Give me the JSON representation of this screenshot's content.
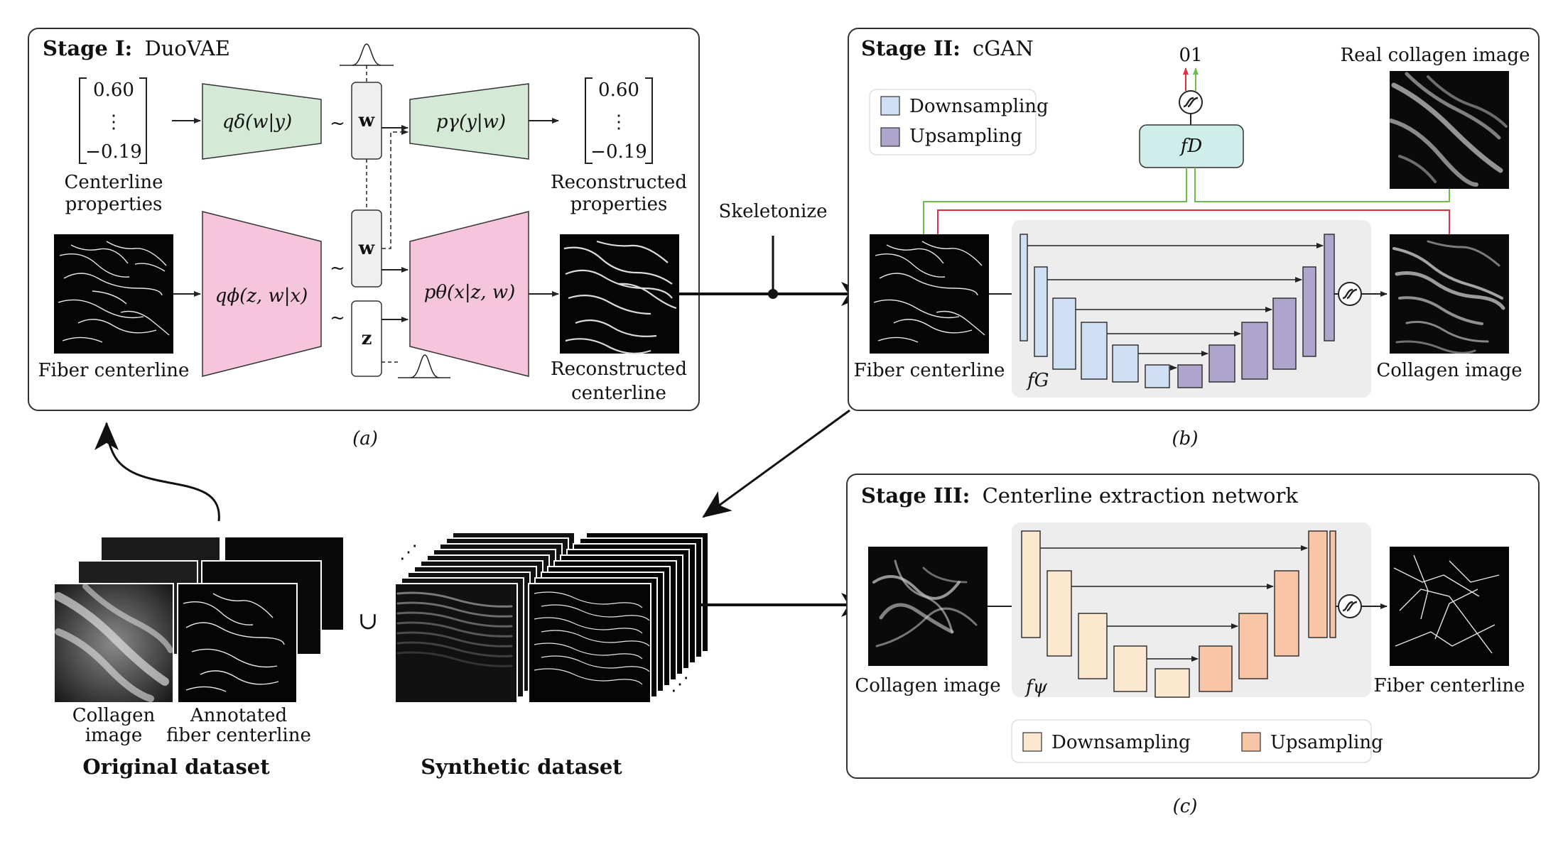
{
  "stage1": {
    "title_bold": "Stage I:",
    "title_rest": "DuoVAE",
    "vector_in": [
      "0.60",
      "⋮",
      "−0.19"
    ],
    "vector_out": [
      "0.60",
      "⋮",
      "−0.19"
    ],
    "encoder_y": "qδ(w|y)",
    "decoder_y": "pγ(y|w)",
    "encoder_x": "qϕ(z, w|x)",
    "decoder_x": "pθ(x|z, w)",
    "latent_w": "w",
    "latent_z": "z",
    "tilde": "~",
    "centerline_props": [
      "Centerline",
      "properties"
    ],
    "recon_props": [
      "Reconstructed",
      "properties"
    ],
    "fiber_centerline": "Fiber centerline",
    "recon_centerline": [
      "Reconstructed",
      "centerline"
    ],
    "panel_label": "(a)"
  },
  "skeletonize": "Skeletonize",
  "stage2": {
    "title_bold": "Stage II:",
    "title_rest": "cGAN",
    "legend_down": "Downsampling",
    "legend_up": "Upsampling",
    "output_01": "01",
    "disc": "fD",
    "gen": "fG",
    "real_image": "Real collagen image",
    "fiber_centerline": "Fiber centerline",
    "collagen_image": "Collagen image",
    "panel_label": "(b)"
  },
  "stage3": {
    "title_bold": "Stage III:",
    "title_rest": "Centerline extraction network",
    "net": "fψ",
    "collagen_image": "Collagen image",
    "fiber_centerline": "Fiber centerline",
    "legend_down": "Downsampling",
    "legend_up": "Upsampling",
    "panel_label": "(c)"
  },
  "datasets": {
    "collagen_image": [
      "Collagen",
      "image"
    ],
    "annotated": [
      "Annotated",
      "fiber centerline"
    ],
    "original": "Original dataset",
    "synthetic": "Synthetic dataset",
    "union": "∪"
  },
  "colors": {
    "vae_green": "#d4ead6",
    "vae_pink": "#f5c5dc",
    "cgan_down": "#cfe0f5",
    "cgan_up": "#aea4cc",
    "disc_teal": "#cfeee9",
    "ex_down": "#fbe8cf",
    "ex_up": "#f8c6a6",
    "unet_bg": "#ededed",
    "red_line": "#e03040",
    "green_line": "#6cbf4a"
  }
}
